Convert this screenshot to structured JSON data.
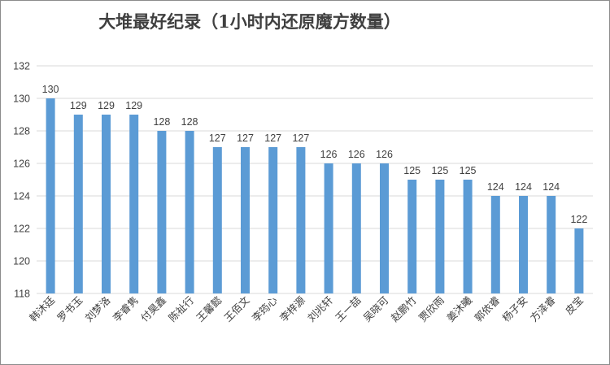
{
  "chart_data": {
    "type": "bar",
    "title": "大堆最好纪录（1小时内还原魔方数量）",
    "categories": [
      "韩沐廷",
      "罗书玉",
      "刘梦洛",
      "李睿隽",
      "付昊鑫",
      "陈祉行",
      "王馨懿",
      "王佰文",
      "李筠心",
      "李梓源",
      "刘兆轩",
      "王一喆",
      "吴晓可",
      "赵鹏竹",
      "贾欣雨",
      "姜沐曦",
      "郭依睿",
      "杨子安",
      "方泽睿",
      "皮宝"
    ],
    "values": [
      130,
      129,
      129,
      129,
      128,
      128,
      127,
      127,
      127,
      127,
      126,
      126,
      126,
      125,
      125,
      125,
      124,
      124,
      124,
      122
    ],
    "ylim": [
      118,
      132
    ],
    "yticks": [
      118,
      120,
      122,
      124,
      126,
      128,
      130,
      132
    ],
    "grid": true,
    "data_labels": true,
    "bar_color": "#5B9BD5",
    "grid_color": "#D9D9D9"
  }
}
